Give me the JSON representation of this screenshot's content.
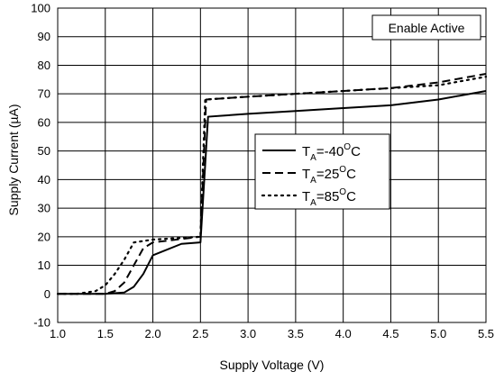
{
  "chart_data": {
    "type": "line",
    "title": "",
    "xlabel": "Supply Voltage (V)",
    "ylabel": "Supply Current (µA)",
    "xlim": [
      1.0,
      5.5
    ],
    "ylim": [
      -10,
      100
    ],
    "xticks": [
      "1.0",
      "1.5",
      "2.0",
      "2.5",
      "3.0",
      "3.5",
      "4.0",
      "4.5",
      "5.0",
      "5.5"
    ],
    "yticks": [
      "-10",
      "0",
      "10",
      "20",
      "30",
      "40",
      "50",
      "60",
      "70",
      "80",
      "90",
      "100"
    ],
    "grid": true,
    "legend_position": "center-right",
    "annotation": "Enable Active",
    "series": [
      {
        "name": "TA=-40°C",
        "label_main": "T",
        "label_sub": "A",
        "label_pre": "=-40",
        "label_sup": "O",
        "label_post": "C",
        "style": "solid",
        "x": [
          1.0,
          1.5,
          1.7,
          1.8,
          1.9,
          2.0,
          2.3,
          2.5,
          2.58,
          3.0,
          3.5,
          4.0,
          4.5,
          5.0,
          5.5
        ],
        "y": [
          0,
          0,
          0.5,
          2.5,
          7,
          13.5,
          17.5,
          18,
          62,
          63,
          64,
          65,
          66,
          68,
          71
        ]
      },
      {
        "name": "TA=25°C",
        "label_main": "T",
        "label_sub": "A",
        "label_pre": "=25",
        "label_sup": "O",
        "label_post": "C",
        "style": "dashed",
        "x": [
          1.0,
          1.5,
          1.6,
          1.7,
          1.8,
          1.9,
          2.0,
          2.5,
          2.56,
          3.0,
          3.5,
          4.0,
          4.5,
          5.0,
          5.5
        ],
        "y": [
          0,
          0,
          1,
          4,
          10,
          16,
          18,
          20,
          68,
          69,
          70,
          71,
          72,
          74,
          77
        ]
      },
      {
        "name": "TA=85°C",
        "label_main": "T",
        "label_sub": "A",
        "label_pre": "=85",
        "label_sup": "O",
        "label_post": "C",
        "style": "dotted",
        "x": [
          1.0,
          1.2,
          1.4,
          1.5,
          1.6,
          1.7,
          1.8,
          2.0,
          2.5,
          2.55,
          3.0,
          3.5,
          4.0,
          4.5,
          5.0,
          5.5
        ],
        "y": [
          0,
          0,
          1,
          3,
          7,
          12,
          18,
          19,
          20,
          68,
          69,
          70,
          71,
          72,
          73,
          76
        ]
      }
    ]
  }
}
